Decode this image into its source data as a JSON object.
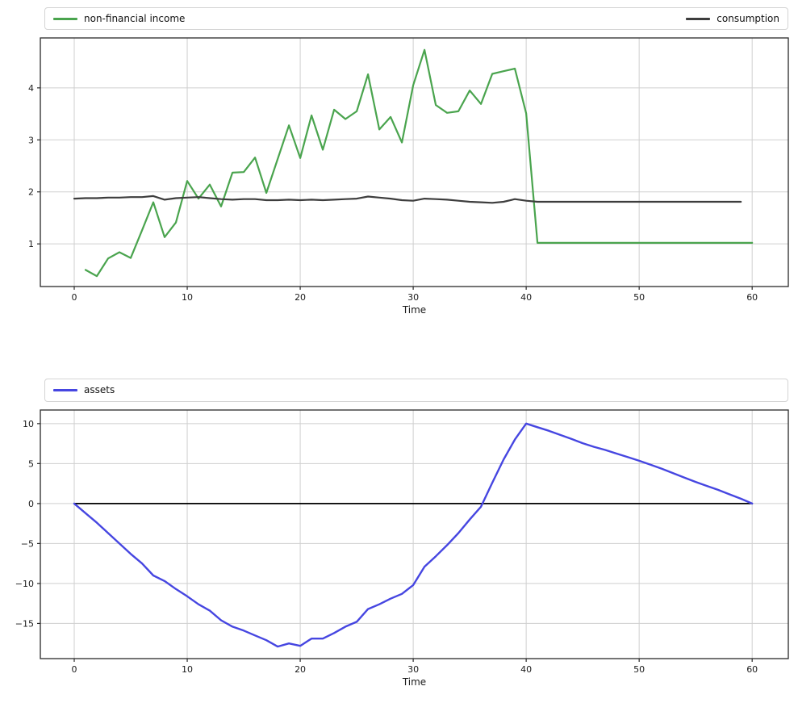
{
  "figure": {
    "background": "#ffffff",
    "grid_color": "#cfcfcf",
    "spine_color": "#2a2a2a",
    "tick_text_color": "#1a1a1a"
  },
  "chart_data": [
    {
      "type": "line",
      "xlabel": "Time",
      "grid": true,
      "legend": {
        "position": "top-expand",
        "entries": [
          {
            "label": "non-financial income",
            "color": "#4aa44e"
          },
          {
            "label": "consumption",
            "color": "#3d3d3d"
          }
        ]
      },
      "xlim": [
        -3.0,
        63.2
      ],
      "ylim": [
        0.18,
        4.96
      ],
      "xticks": {
        "values": [
          0,
          10,
          20,
          30,
          40,
          50,
          60
        ],
        "labels": [
          "0",
          "10",
          "20",
          "30",
          "40",
          "50",
          "60"
        ]
      },
      "yticks": {
        "values": [
          1,
          2,
          3,
          4
        ],
        "labels": [
          "1",
          "2",
          "3",
          "4"
        ]
      },
      "series": [
        {
          "name": "non-financial income",
          "color": "#4aa44e",
          "width": 2.2,
          "x": [
            1,
            2,
            3,
            4,
            5,
            6,
            7,
            8,
            9,
            10,
            11,
            12,
            13,
            14,
            15,
            16,
            17,
            18,
            19,
            20,
            21,
            22,
            23,
            24,
            25,
            26,
            27,
            28,
            29,
            30,
            31,
            32,
            33,
            34,
            35,
            36,
            37,
            38,
            39,
            40,
            41,
            42,
            43,
            44,
            45,
            46,
            47,
            48,
            49,
            50,
            51,
            52,
            53,
            54,
            55,
            56,
            57,
            58,
            59,
            60
          ],
          "values": [
            0.5,
            0.38,
            0.72,
            0.84,
            0.73,
            1.26,
            1.8,
            1.13,
            1.41,
            2.21,
            1.87,
            2.14,
            1.72,
            2.37,
            2.38,
            2.66,
            1.98,
            2.63,
            3.28,
            2.65,
            3.47,
            2.81,
            3.58,
            3.4,
            3.55,
            4.26,
            3.2,
            3.44,
            2.95,
            4.05,
            4.73,
            3.67,
            3.52,
            3.55,
            3.95,
            3.69,
            4.27,
            4.32,
            4.37,
            3.51,
            1.02,
            1.02,
            1.02,
            1.02,
            1.02,
            1.02,
            1.02,
            1.02,
            1.02,
            1.02,
            1.02,
            1.02,
            1.02,
            1.02,
            1.02,
            1.02,
            1.02,
            1.02,
            1.02,
            1.02
          ]
        },
        {
          "name": "consumption",
          "color": "#3d3d3d",
          "width": 2.2,
          "x": [
            0,
            1,
            2,
            3,
            4,
            5,
            6,
            7,
            8,
            9,
            10,
            11,
            12,
            13,
            14,
            15,
            16,
            17,
            18,
            19,
            20,
            21,
            22,
            23,
            24,
            25,
            26,
            27,
            28,
            29,
            30,
            31,
            32,
            33,
            34,
            35,
            36,
            37,
            38,
            39,
            40,
            41,
            42,
            43,
            44,
            45,
            46,
            47,
            48,
            49,
            50,
            51,
            52,
            53,
            54,
            55,
            56,
            57,
            58,
            59
          ],
          "values": [
            1.87,
            1.88,
            1.88,
            1.89,
            1.89,
            1.9,
            1.9,
            1.92,
            1.85,
            1.88,
            1.89,
            1.9,
            1.88,
            1.86,
            1.85,
            1.86,
            1.86,
            1.84,
            1.84,
            1.85,
            1.84,
            1.85,
            1.84,
            1.85,
            1.86,
            1.87,
            1.91,
            1.89,
            1.87,
            1.84,
            1.83,
            1.87,
            1.86,
            1.85,
            1.83,
            1.81,
            1.8,
            1.79,
            1.81,
            1.86,
            1.83,
            1.81,
            1.81,
            1.81,
            1.81,
            1.81,
            1.81,
            1.81,
            1.81,
            1.81,
            1.81,
            1.81,
            1.81,
            1.81,
            1.81,
            1.81,
            1.81,
            1.81,
            1.81,
            1.81
          ]
        }
      ]
    },
    {
      "type": "line",
      "xlabel": "Time",
      "grid": true,
      "legend": {
        "position": "top-expand",
        "entries": [
          {
            "label": "assets",
            "color": "#4646e1"
          }
        ]
      },
      "xlim": [
        -3.0,
        63.2
      ],
      "ylim": [
        -19.4,
        11.7
      ],
      "xticks": {
        "values": [
          0,
          10,
          20,
          30,
          40,
          50,
          60
        ],
        "labels": [
          "0",
          "10",
          "20",
          "30",
          "40",
          "50",
          "60"
        ]
      },
      "yticks": {
        "values": [
          -15,
          -10,
          -5,
          0,
          5,
          10
        ],
        "labels": [
          "−15",
          "−10",
          "−5",
          "0",
          "5",
          "10"
        ]
      },
      "series": [
        {
          "name": "zero line",
          "color": "#000000",
          "width": 1.8,
          "x": [
            0,
            60
          ],
          "values": [
            0,
            0
          ]
        },
        {
          "name": "assets",
          "color": "#4646e1",
          "width": 2.4,
          "x": [
            0,
            1,
            2,
            3,
            4,
            5,
            6,
            7,
            8,
            9,
            10,
            11,
            12,
            13,
            14,
            15,
            16,
            17,
            18,
            19,
            20,
            21,
            22,
            23,
            24,
            25,
            26,
            27,
            28,
            29,
            30,
            31,
            32,
            33,
            34,
            35,
            36,
            37,
            38,
            39,
            40,
            41,
            42,
            43,
            44,
            45,
            46,
            47,
            48,
            49,
            50,
            51,
            52,
            53,
            54,
            55,
            56,
            57,
            58,
            59,
            60
          ],
          "values": [
            0,
            -1.2,
            -2.4,
            -3.7,
            -5.0,
            -6.3,
            -7.5,
            -9.0,
            -9.7,
            -10.7,
            -11.6,
            -12.6,
            -13.4,
            -14.6,
            -15.4,
            -15.9,
            -16.5,
            -17.1,
            -17.9,
            -17.5,
            -17.8,
            -16.9,
            -16.9,
            -16.2,
            -15.4,
            -14.8,
            -13.2,
            -12.6,
            -11.9,
            -11.3,
            -10.2,
            -7.9,
            -6.6,
            -5.2,
            -3.7,
            -2.0,
            -0.4,
            2.6,
            5.5,
            8.0,
            10.0,
            9.55,
            9.1,
            8.6,
            8.1,
            7.55,
            7.1,
            6.7,
            6.25,
            5.8,
            5.35,
            4.85,
            4.35,
            3.8,
            3.25,
            2.7,
            2.2,
            1.7,
            1.15,
            0.6,
            0.0
          ]
        }
      ]
    }
  ]
}
